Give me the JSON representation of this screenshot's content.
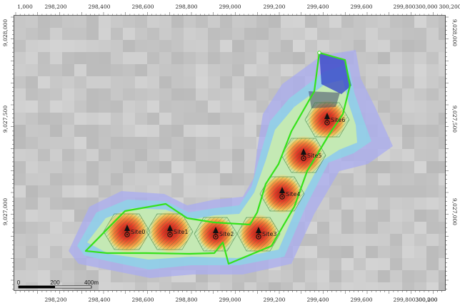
{
  "map": {
    "x_axis_labels": [
      "1,000",
      "298,200",
      "298,400",
      "298,600",
      "298,800",
      "299,000",
      "299,200",
      "299,400",
      "299,600",
      "299,800",
      "300,000",
      "300,200"
    ],
    "x_axis_labels_bottom": [
      "298,200",
      "298,400",
      "298,600",
      "298,800",
      "299,000",
      "299,200",
      "299,400",
      "299,600",
      "299,800",
      "300,000",
      "300,200"
    ],
    "y_axis_labels_left": [
      "9,028,000",
      "9,027,500",
      "9,027,000"
    ],
    "y_axis_labels_right": [
      "9,028,000",
      "9,027,500",
      "9,027,000"
    ],
    "sites": [
      {
        "label": "Site0"
      },
      {
        "label": "Site1"
      },
      {
        "label": "Site2"
      },
      {
        "label": "Site3"
      },
      {
        "label": "Site4"
      },
      {
        "label": "Site5"
      },
      {
        "label": "Site6"
      }
    ],
    "scale_bar": {
      "labels": [
        "0",
        "200",
        "400m"
      ]
    },
    "colors": {
      "background_raster": "#c6c6c6",
      "coverage_outer": "#a9acf0",
      "coverage_mid": "#8fd2e6",
      "coverage_inner": "#c9ecae",
      "hotspot_core": "#e53d2a",
      "boundary": "#35e21a"
    }
  }
}
